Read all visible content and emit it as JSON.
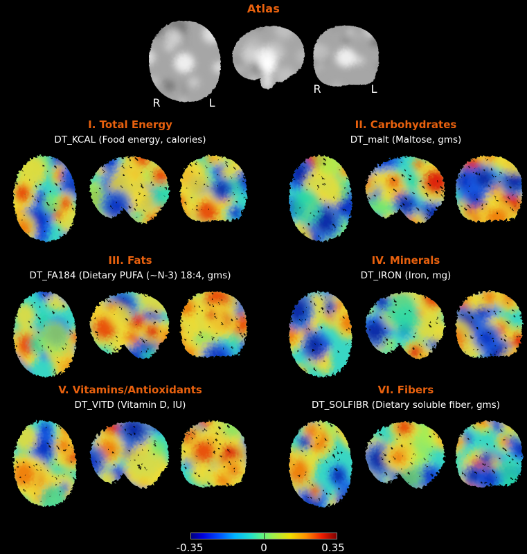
{
  "figure": {
    "background": "#000000",
    "accent_color": "#e8610e",
    "text_color": "#ffffff"
  },
  "atlas": {
    "title": "Atlas",
    "axial_labels": {
      "right": "R",
      "left": "L"
    },
    "coronal_labels": {
      "right": "R",
      "left": "L"
    }
  },
  "panels": [
    {
      "title": "I. Total Energy",
      "subtitle": "DT_KCAL (Food energy, calories)"
    },
    {
      "title": "II. Carbohydrates",
      "subtitle": "DT_malt (Maltose, gms)"
    },
    {
      "title": "III. Fats",
      "subtitle": "DT_FA184 (Dietary PUFA (~N-3) 18:4, gms)"
    },
    {
      "title": "IV. Minerals",
      "subtitle": "DT_IRON (Iron, mg)"
    },
    {
      "title": "V. Vitamins/Antioxidants",
      "subtitle": "DT_VITD (Vitamin D, IU)"
    },
    {
      "title": "VI. Fibers",
      "subtitle": "DT_SOLFIBR (Dietary soluble fiber, gms)"
    }
  ],
  "colorbar": {
    "min_label": "-0.35",
    "zero_label": "0",
    "max_label": "0.35",
    "value_range": [
      -0.35,
      0.35
    ],
    "colormap": "jet"
  }
}
